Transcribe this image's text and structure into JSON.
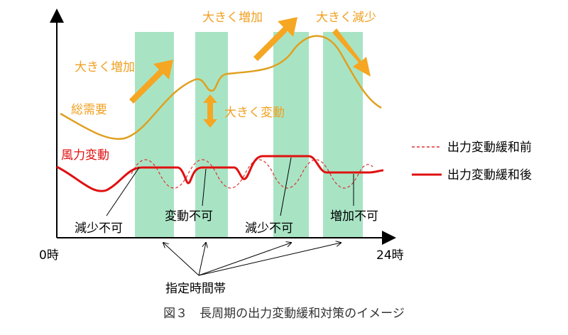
{
  "annotations": {
    "increase_left": "大きく増加",
    "increase_right": "大きく増加",
    "decrease_right": "大きく減少",
    "fluctuation": "大きく変動",
    "total_demand": "総需要",
    "wind_variation": "風力変動"
  },
  "legend": {
    "before": "出力変動緩和前",
    "after": "出力変動緩和後"
  },
  "constraints": [
    "減少不可",
    "変動不可",
    "減少不可",
    "増加不可"
  ],
  "axis": {
    "start": "0時",
    "end": "24時"
  },
  "designated_period": "指定時間帯",
  "caption": "図３　長周期の出力変動緩和対策のイメージ"
}
